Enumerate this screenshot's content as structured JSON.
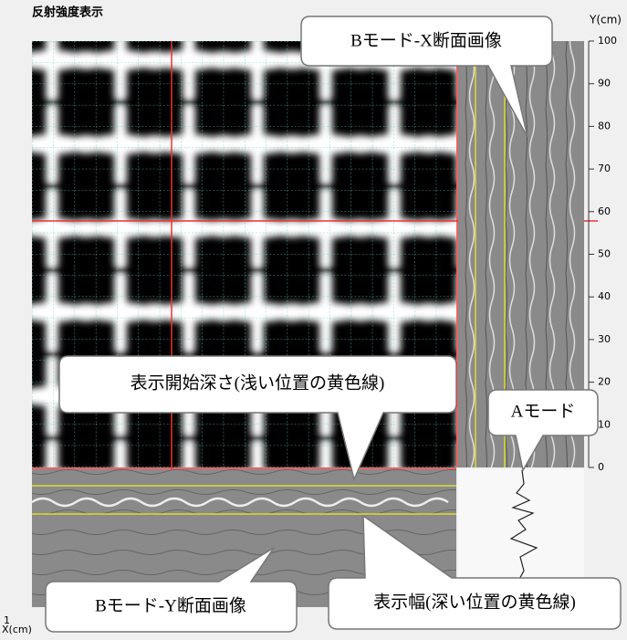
{
  "panel": {
    "title": "反射強度表示",
    "y_axis": {
      "label": "Y(cm)",
      "range": [
        0,
        100
      ],
      "ticks": [
        0,
        10,
        20,
        30,
        40,
        50,
        60,
        70,
        80,
        90,
        100
      ]
    },
    "x_axis": {
      "label": "X(cm)",
      "first_tick": "1"
    }
  },
  "callouts": {
    "b_mode_x": "Bモード-X断面画像",
    "depth_start": "表示開始深さ(浅い位置の黄色線)",
    "a_mode": "Aモード",
    "b_mode_y": "Bモード-Y断面画像",
    "display_width": "表示幅(深い位置の黄色線)"
  }
}
